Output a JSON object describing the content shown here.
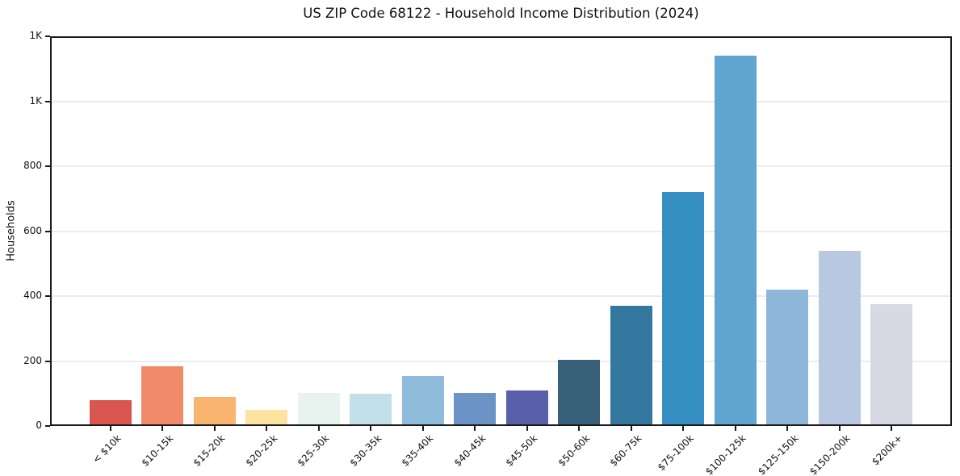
{
  "chart_data": {
    "type": "bar",
    "title": "US ZIP Code 68122 - Household Income Distribution (2024)",
    "xlabel": "",
    "ylabel": "Households",
    "categories": [
      "< $10k",
      "$10-15k",
      "$15-20k",
      "$20-25k",
      "$25-30k",
      "$30-35k",
      "$35-40k",
      "$40-45k",
      "$45-50k",
      "$50-60k",
      "$60-75k",
      "$75-100k",
      "$100-125k",
      "$125-150k",
      "$150-200k",
      "$200k+"
    ],
    "values": [
      80,
      185,
      90,
      50,
      103,
      100,
      153,
      102,
      109,
      205,
      370,
      720,
      1140,
      420,
      540,
      374
    ],
    "bar_colors": [
      "#d8564f",
      "#f18a68",
      "#f9b46f",
      "#fce4a0",
      "#e8f3f0",
      "#c3dfea",
      "#90bcdc",
      "#6b93c5",
      "#5a5fa9",
      "#386179",
      "#35789f",
      "#368fc3",
      "#5fa5cf",
      "#8db6d9",
      "#b9c8e1",
      "#d7d9e5"
    ],
    "ylim": [
      0,
      1200
    ],
    "yticks": [
      {
        "value": 0,
        "label": "0"
      },
      {
        "value": 200,
        "label": "200"
      },
      {
        "value": 400,
        "label": "400"
      },
      {
        "value": 600,
        "label": "600"
      },
      {
        "value": 800,
        "label": "800"
      },
      {
        "value": 1000,
        "label": "1K"
      },
      {
        "value": 1200,
        "label": "1K"
      }
    ],
    "grid": "horizontal-only",
    "legend": "none",
    "background_color": "#ffffff",
    "axis_color": "#1a1a1a",
    "gridline_color": "#ececec",
    "x_tick_rotation_deg": 45
  }
}
